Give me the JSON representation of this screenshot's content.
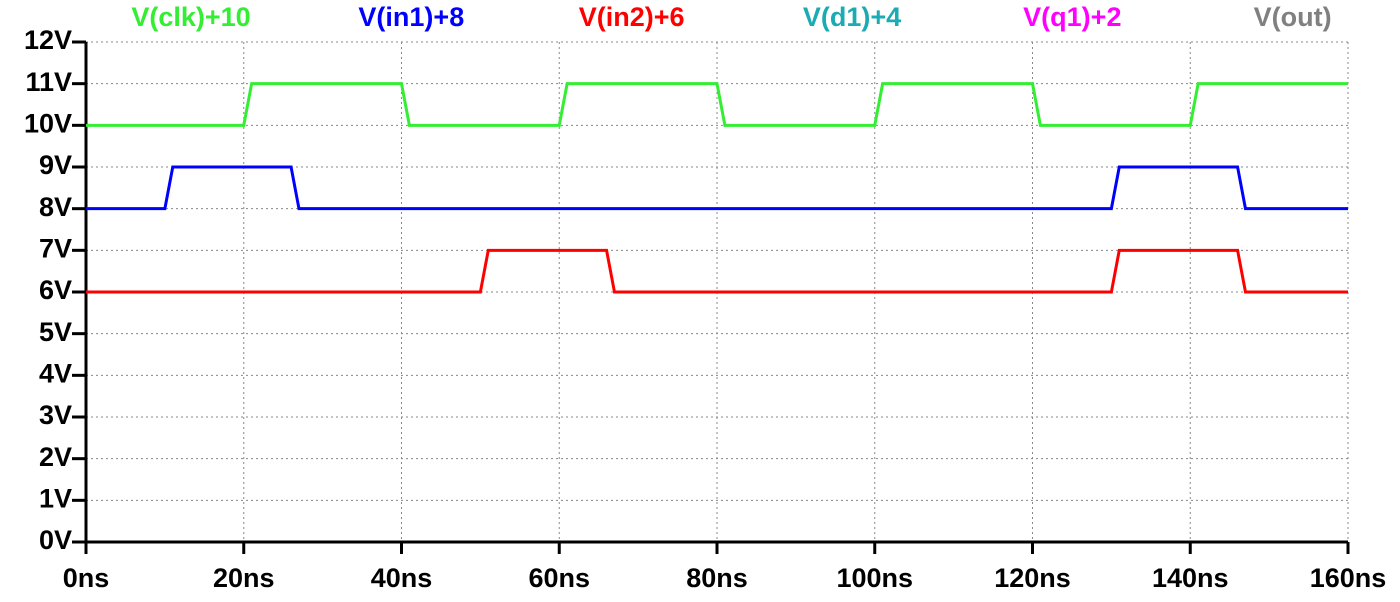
{
  "chart_data": {
    "type": "line",
    "xlim": [
      0,
      160
    ],
    "ylim": [
      0,
      12
    ],
    "grid": true,
    "xticks": [
      {
        "value": 0,
        "label": "0ns"
      },
      {
        "value": 20,
        "label": "20ns"
      },
      {
        "value": 40,
        "label": "40ns"
      },
      {
        "value": 60,
        "label": "60ns"
      },
      {
        "value": 80,
        "label": "80ns"
      },
      {
        "value": 100,
        "label": "100ns"
      },
      {
        "value": 120,
        "label": "120ns"
      },
      {
        "value": 140,
        "label": "140ns"
      },
      {
        "value": 160,
        "label": "160ns"
      }
    ],
    "yticks": [
      {
        "value": 0,
        "label": "0V"
      },
      {
        "value": 1,
        "label": "1V"
      },
      {
        "value": 2,
        "label": "2V"
      },
      {
        "value": 3,
        "label": "3V"
      },
      {
        "value": 4,
        "label": "4V"
      },
      {
        "value": 5,
        "label": "5V"
      },
      {
        "value": 6,
        "label": "6V"
      },
      {
        "value": 7,
        "label": "7V"
      },
      {
        "value": 8,
        "label": "8V"
      },
      {
        "value": 9,
        "label": "9V"
      },
      {
        "value": 10,
        "label": "10V"
      },
      {
        "value": 11,
        "label": "11V"
      },
      {
        "value": 12,
        "label": "12V"
      }
    ],
    "series": [
      {
        "name": "V(clk)+10",
        "color": "#33ee33",
        "x": [
          0,
          20,
          21,
          40,
          41,
          60,
          61,
          80,
          81,
          100,
          101,
          120,
          121,
          140,
          141,
          160
        ],
        "values": [
          10,
          10,
          11,
          11,
          10,
          10,
          11,
          11,
          10,
          10,
          11,
          11,
          10,
          10,
          11,
          11
        ]
      },
      {
        "name": "V(in1)+8",
        "color": "#0000ff",
        "x": [
          0,
          10,
          11,
          26,
          27,
          130,
          131,
          146,
          147,
          160
        ],
        "values": [
          8,
          8,
          9,
          9,
          8,
          8,
          9,
          9,
          8,
          8
        ]
      },
      {
        "name": "V(in2)+6",
        "color": "#ff0000",
        "x": [
          0,
          50,
          51,
          66,
          67,
          130,
          131,
          146,
          147,
          160
        ],
        "values": [
          6,
          6,
          7,
          7,
          6,
          6,
          7,
          7,
          6,
          6
        ]
      },
      {
        "name": "V(d1)+4",
        "color": "#1aabb3",
        "x": [],
        "values": []
      },
      {
        "name": "V(q1)+2",
        "color": "#ff00ff",
        "x": [],
        "values": []
      },
      {
        "name": "V(out)",
        "color": "#808080",
        "x": [],
        "values": []
      }
    ]
  }
}
